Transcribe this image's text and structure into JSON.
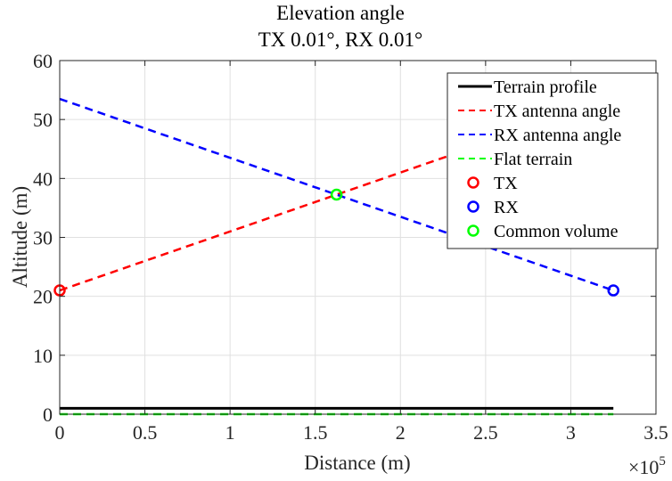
{
  "chart_data": {
    "type": "line",
    "title": [
      "Elevation angle",
      "TX 0.01°, RX 0.01°"
    ],
    "xlabel": "Distance (m)",
    "ylabel": "Altitude (m)",
    "x_exponent_label": "×10",
    "x_exponent_power": "5",
    "xlim": [
      0,
      3.5
    ],
    "ylim": [
      0,
      60
    ],
    "xticks": [
      0,
      0.5,
      1,
      1.5,
      2,
      2.5,
      3,
      3.5
    ],
    "xtick_labels": [
      "0",
      "0.5",
      "1",
      "1.5",
      "2",
      "2.5",
      "3",
      "3.5"
    ],
    "yticks": [
      0,
      10,
      20,
      30,
      40,
      50,
      60
    ],
    "ytick_labels": [
      "0",
      "10",
      "20",
      "30",
      "40",
      "50",
      "60"
    ],
    "grid": true,
    "legend_position": "top-right",
    "series": [
      {
        "name": "Terrain profile",
        "color": "#000000",
        "style": "solid",
        "x": [
          0,
          3.25
        ],
        "y": [
          1,
          1
        ]
      },
      {
        "name": "TX antenna angle",
        "color": "#ff0000",
        "style": "dashed",
        "x": [
          0,
          3.25
        ],
        "y": [
          21,
          53.5
        ]
      },
      {
        "name": "RX antenna angle",
        "color": "#0000ff",
        "style": "dashed",
        "x": [
          0,
          3.25
        ],
        "y": [
          53.5,
          21
        ]
      },
      {
        "name": "Flat terrain",
        "color": "#00ff00",
        "style": "dashed",
        "x": [
          0,
          3.25
        ],
        "y": [
          0,
          0
        ]
      },
      {
        "name": "TX",
        "color": "#ff0000",
        "style": "marker",
        "x": [
          0
        ],
        "y": [
          21
        ]
      },
      {
        "name": "RX",
        "color": "#0000ff",
        "style": "marker",
        "x": [
          3.25
        ],
        "y": [
          21
        ]
      },
      {
        "name": "Common volume",
        "color": "#00ff00",
        "style": "marker",
        "x": [
          1.625
        ],
        "y": [
          37.25
        ]
      }
    ]
  }
}
